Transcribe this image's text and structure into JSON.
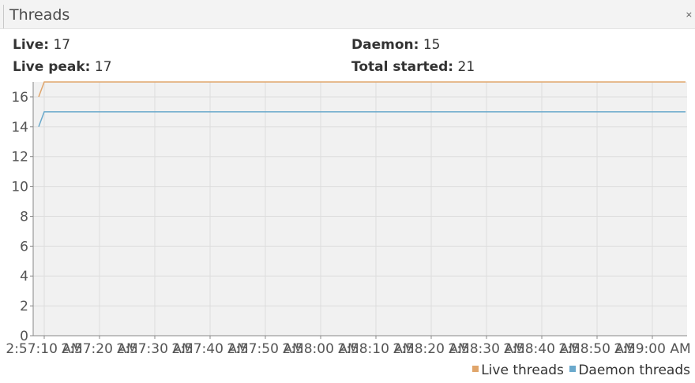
{
  "panel": {
    "title": "Threads",
    "close_label": "×"
  },
  "stats": {
    "live_label": "Live:",
    "live_value": "17",
    "peak_label": "Live peak:",
    "peak_value": "17",
    "daemon_label": "Daemon:",
    "daemon_value": "15",
    "total_label": "Total started:",
    "total_value": "21"
  },
  "colors": {
    "live": "#e0a56b",
    "daemon": "#6aa9cc",
    "plot_background": "#f1f1f1",
    "grid": "#dddddd"
  },
  "chart_data": {
    "type": "line",
    "title": "",
    "xlabel": "",
    "ylabel": "",
    "ylim": [
      0,
      17
    ],
    "y_ticks": [
      0,
      2,
      4,
      6,
      8,
      10,
      12,
      14,
      16
    ],
    "x_ticks": [
      "2:57:10 AM",
      "2:57:20 AM",
      "2:57:30 AM",
      "2:57:40 AM",
      "2:57:50 AM",
      "2:58:00 AM",
      "2:58:10 AM",
      "2:58:20 AM",
      "2:58:30 AM",
      "2:58:40 AM",
      "2:58:50 AM",
      "2:59:00 AM"
    ],
    "grid": true,
    "legend_position": "bottom-right",
    "series": [
      {
        "name": "Live threads",
        "points": [
          [
            "2:57:09 AM",
            16
          ],
          [
            "2:57:10 AM",
            17
          ],
          [
            "2:59:06 AM",
            17
          ]
        ]
      },
      {
        "name": "Daemon threads",
        "points": [
          [
            "2:57:09 AM",
            14
          ],
          [
            "2:57:10 AM",
            15
          ],
          [
            "2:59:06 AM",
            15
          ]
        ]
      }
    ]
  },
  "legend": {
    "live_label": "Live threads",
    "daemon_label": "Daemon threads"
  }
}
